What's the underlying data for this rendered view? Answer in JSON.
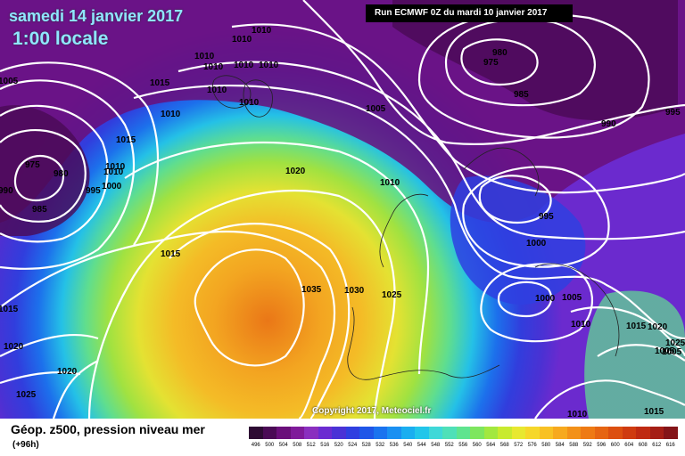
{
  "header": {
    "date": "samedi 14 janvier 2017",
    "local_time": "1:00 locale",
    "run": "Run ECMWF 0Z du mardi 10 janvier 2017"
  },
  "footer": {
    "title": "Géop. z500, pression niveau mer",
    "lead": "(+96h)",
    "copyright": "Copyright 2017, Meteociel.fr"
  },
  "colors": {
    "scale": [
      "#2d0a33",
      "#4a0a55",
      "#6a0f7a",
      "#7f1a9a",
      "#8a2fbf",
      "#6b2bd1",
      "#4a32d6",
      "#2f3fe0",
      "#1f56e8",
      "#1a73ef",
      "#1a90f2",
      "#1aaef0",
      "#22c6ea",
      "#3fd8d8",
      "#4fe0b8",
      "#5fe48f",
      "#7ee65f",
      "#a2e83f",
      "#c8ea2f",
      "#e8e830",
      "#f6d72a",
      "#f8c124",
      "#f7a91e",
      "#f39118",
      "#ee7a14",
      "#e66512",
      "#dc4f10",
      "#cf3b10",
      "#bf2a12",
      "#a51e16",
      "#841418",
      "#5f0e18",
      "#3a0910"
    ]
  },
  "scale_labels": [
    "496",
    "500",
    "504",
    "508",
    "512",
    "516",
    "520",
    "524",
    "528",
    "532",
    "536",
    "540",
    "544",
    "548",
    "552",
    "556",
    "560",
    "564",
    "568",
    "572",
    "576",
    "580",
    "584",
    "588",
    "592",
    "596",
    "600",
    "604",
    "608",
    "612",
    "616"
  ],
  "isobars": [
    {
      "v": "1010"
    },
    {
      "v": "1010"
    },
    {
      "v": "1010"
    },
    {
      "v": "1010"
    },
    {
      "v": "1010"
    },
    {
      "v": "1010"
    },
    {
      "v": "1010"
    },
    {
      "v": "1015"
    },
    {
      "v": "1010"
    },
    {
      "v": "1010"
    },
    {
      "v": "1010"
    },
    {
      "v": "1015"
    },
    {
      "v": "1010"
    },
    {
      "v": "1005"
    },
    {
      "v": "1000"
    },
    {
      "v": "975"
    },
    {
      "v": "980"
    },
    {
      "v": "995"
    },
    {
      "v": "985"
    },
    {
      "v": "990"
    },
    {
      "v": "1015"
    },
    {
      "v": "1015"
    },
    {
      "v": "1020"
    },
    {
      "v": "1020"
    },
    {
      "v": "1025"
    },
    {
      "v": "1035"
    },
    {
      "v": "1030"
    },
    {
      "v": "1025"
    },
    {
      "v": "1020"
    },
    {
      "v": "1005"
    },
    {
      "v": "1010"
    },
    {
      "v": "980"
    },
    {
      "v": "975"
    },
    {
      "v": "985"
    },
    {
      "v": "990"
    },
    {
      "v": "995"
    },
    {
      "v": "995"
    },
    {
      "v": "1000"
    },
    {
      "v": "1000"
    },
    {
      "v": "1005"
    },
    {
      "v": "1010"
    },
    {
      "v": "1015"
    },
    {
      "v": "1020"
    },
    {
      "v": "1025"
    },
    {
      "v": "1010"
    },
    {
      "v": "1015"
    },
    {
      "v": "1005"
    },
    {
      "v": "1005"
    }
  ]
}
